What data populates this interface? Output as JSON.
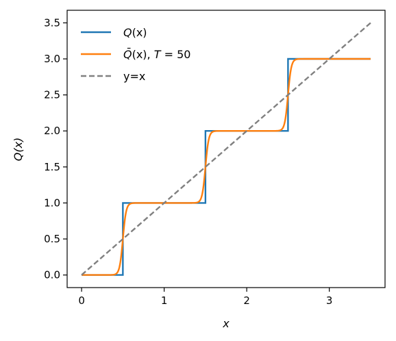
{
  "chart_data": {
    "type": "line",
    "title": "",
    "xlabel": "x",
    "ylabel": "Q(x)",
    "xlim": [
      -0.175,
      3.675
    ],
    "ylim": [
      -0.175,
      3.675
    ],
    "xticks": [
      0,
      1,
      2,
      3
    ],
    "yticks": [
      0.0,
      0.5,
      1.0,
      1.5,
      2.0,
      2.5,
      3.0,
      3.5
    ],
    "xtick_labels": [
      "0",
      "1",
      "2",
      "3"
    ],
    "ytick_labels": [
      "0.0",
      "0.5",
      "1.0",
      "1.5",
      "2.0",
      "2.5",
      "3.0",
      "3.5"
    ],
    "grid": false,
    "legend_position": "top-left",
    "series": [
      {
        "name": "Q(x)",
        "legend": {
          "main": "Q",
          "rest": "(x)"
        },
        "color": "#1f77b4",
        "style": "solid",
        "kind": "hard-step",
        "x_range": [
          0,
          3.5
        ],
        "step_points": [
          0.5,
          1.5,
          2.5
        ],
        "levels": [
          0,
          1,
          2,
          3
        ]
      },
      {
        "name": "Q̄(x), T = 50",
        "legend": {
          "main": "Q̄",
          "rest": "(x), ",
          "t_main": "T",
          "t_rest": " = 50"
        },
        "color": "#ff7f0e",
        "style": "solid",
        "kind": "soft-step",
        "temperature": 50,
        "x_range": [
          0,
          3.5
        ],
        "step_points": [
          0.5,
          1.5,
          2.5
        ]
      },
      {
        "name": "y=x",
        "legend": {
          "main": "y=x",
          "rest": ""
        },
        "color": "#808080",
        "style": "dashed",
        "kind": "identity",
        "x": [
          0,
          3.5
        ],
        "y": [
          0,
          3.5
        ]
      }
    ]
  }
}
